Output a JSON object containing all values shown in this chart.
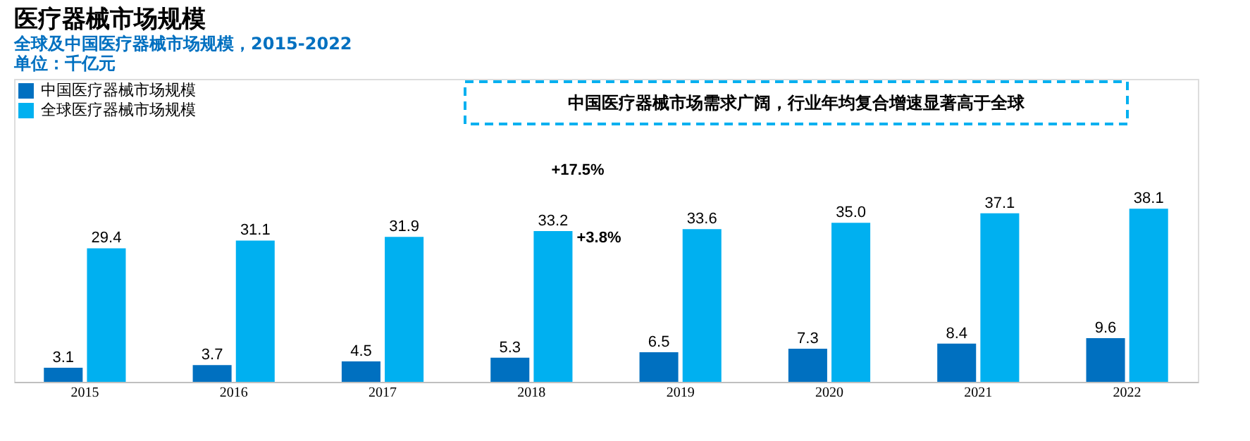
{
  "chart_data": {
    "type": "bar",
    "title": "医疗器械市场规模",
    "subtitle": "全球及中国医疗器械市场规模，2015-2022\n单位：千亿元",
    "categories": [
      "2015",
      "2016",
      "2017",
      "2018",
      "2019",
      "2020",
      "2021",
      "2022"
    ],
    "series": [
      {
        "name": "中国医疗器械市场规模",
        "color": "#0070c0",
        "values": [
          3.1,
          3.7,
          4.5,
          5.3,
          6.5,
          7.3,
          8.4,
          9.6
        ],
        "value_labels": [
          "3.1",
          "3.7",
          "4.5",
          "5.3",
          "6.5",
          "7.3",
          "8.4",
          "9.6"
        ]
      },
      {
        "name": "全球医疗器械市场规模",
        "color": "#00b0f0",
        "values": [
          29.4,
          31.1,
          31.9,
          33.2,
          33.6,
          35.0,
          37.1,
          38.1
        ],
        "value_labels": [
          "29.4",
          "31.1",
          "31.9",
          "33.2",
          "33.6",
          "35.0",
          "37.1",
          "38.1"
        ]
      }
    ],
    "annotations": [
      "中国医疗器械市场需求广阔，行业年均复合增速显著高于全球",
      "+17.5%",
      "+3.8%"
    ],
    "legend": "top left",
    "grid": false
  }
}
